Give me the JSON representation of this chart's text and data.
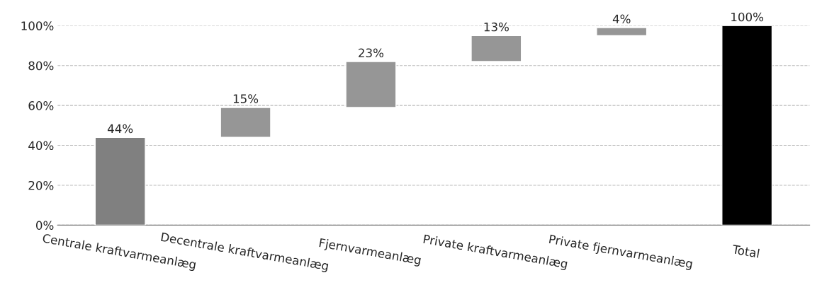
{
  "chart_data": {
    "type": "bar",
    "categories": [
      "Centrale kraftvarmeanlæg",
      "Decentrale kraftvarmeanlæg",
      "Fjernvarmeanlæg",
      "Private kraftvarmeanlæg",
      "Private fjernvarmeanlæg",
      "Total"
    ],
    "values": [
      44,
      15,
      23,
      13,
      4,
      100
    ],
    "base": [
      0,
      44,
      59,
      82,
      95,
      0
    ],
    "colors": [
      "#808080",
      "#969696",
      "#969696",
      "#969696",
      "#969696",
      "#000000"
    ],
    "value_labels": [
      "44%",
      "15%",
      "23%",
      "13%",
      "4%",
      "100%"
    ],
    "ylim": [
      0,
      100
    ],
    "yticks": [
      {
        "value": 0,
        "label": "0%"
      },
      {
        "value": 20,
        "label": "20%"
      },
      {
        "value": 40,
        "label": "40%"
      },
      {
        "value": 60,
        "label": "60%"
      },
      {
        "value": 80,
        "label": "80%"
      },
      {
        "value": 100,
        "label": "100%"
      }
    ],
    "grid": "y",
    "line_style": "dashed"
  }
}
